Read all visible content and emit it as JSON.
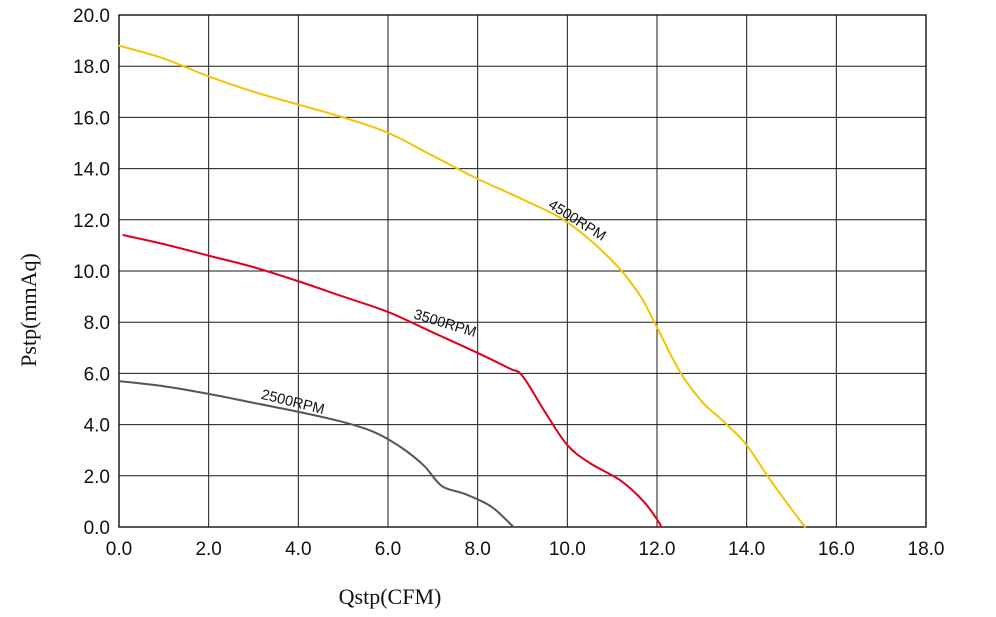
{
  "chart_data": {
    "type": "line",
    "title": "",
    "xlabel": "Qstp(CFM)",
    "ylabel": "Pstp(mmAq)",
    "xlim": [
      0,
      18
    ],
    "ylim": [
      0,
      20
    ],
    "grid": true,
    "x_ticks": [
      "0.0",
      "2.0",
      "4.0",
      "6.0",
      "8.0",
      "10.0",
      "12.0",
      "14.0",
      "16.0",
      "18.0"
    ],
    "y_ticks": [
      "0.0",
      "2.0",
      "4.0",
      "6.0",
      "8.0",
      "10.0",
      "12.0",
      "14.0",
      "16.0",
      "18.0",
      "20.0"
    ],
    "series": [
      {
        "name": "2500RPM",
        "color": "#555555",
        "points": [
          [
            0.0,
            5.7
          ],
          [
            1.0,
            5.5
          ],
          [
            2.0,
            5.2
          ],
          [
            3.0,
            4.85
          ],
          [
            4.0,
            4.5
          ],
          [
            5.0,
            4.1
          ],
          [
            5.7,
            3.7
          ],
          [
            6.3,
            3.1
          ],
          [
            6.8,
            2.4
          ],
          [
            7.2,
            1.6
          ],
          [
            7.7,
            1.3
          ],
          [
            8.3,
            0.8
          ],
          [
            8.8,
            0.0
          ]
        ]
      },
      {
        "name": "3500RPM",
        "color": "#e0001b",
        "points": [
          [
            0.1,
            11.4
          ],
          [
            1.0,
            11.05
          ],
          [
            2.0,
            10.6
          ],
          [
            3.0,
            10.15
          ],
          [
            4.0,
            9.6
          ],
          [
            5.0,
            9.0
          ],
          [
            6.0,
            8.4
          ],
          [
            7.0,
            7.6
          ],
          [
            8.0,
            6.8
          ],
          [
            8.7,
            6.2
          ],
          [
            9.0,
            5.9
          ],
          [
            9.5,
            4.5
          ],
          [
            10.0,
            3.2
          ],
          [
            10.5,
            2.5
          ],
          [
            11.2,
            1.8
          ],
          [
            11.7,
            1.0
          ],
          [
            12.0,
            0.3
          ],
          [
            12.1,
            0.0
          ]
        ]
      },
      {
        "name": "4500RPM",
        "color": "#f5c400",
        "points": [
          [
            0.0,
            18.8
          ],
          [
            1.0,
            18.3
          ],
          [
            2.0,
            17.6
          ],
          [
            3.0,
            17.0
          ],
          [
            4.0,
            16.5
          ],
          [
            5.0,
            16.0
          ],
          [
            6.0,
            15.4
          ],
          [
            7.0,
            14.5
          ],
          [
            8.0,
            13.6
          ],
          [
            9.0,
            12.8
          ],
          [
            10.0,
            11.9
          ],
          [
            11.0,
            10.4
          ],
          [
            11.6,
            9.1
          ],
          [
            12.0,
            7.8
          ],
          [
            12.5,
            6.1
          ],
          [
            13.0,
            4.9
          ],
          [
            13.5,
            4.1
          ],
          [
            14.0,
            3.2
          ],
          [
            14.5,
            1.9
          ],
          [
            15.0,
            0.7
          ],
          [
            15.3,
            0.0
          ]
        ]
      }
    ],
    "annotations": [
      {
        "text": "2500RPM",
        "series": 0,
        "at_x": 3.2,
        "angle": 14
      },
      {
        "text": "3500RPM",
        "series": 1,
        "at_x": 6.6,
        "angle": 17
      },
      {
        "text": "4500RPM",
        "series": 2,
        "at_x": 9.6,
        "angle": 32
      }
    ]
  }
}
